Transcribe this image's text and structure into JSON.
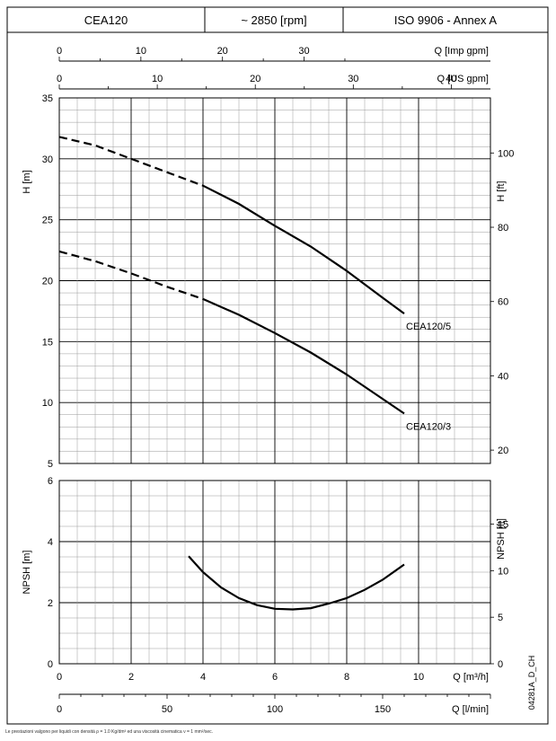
{
  "header": {
    "model": "CEA120",
    "speed": "~ 2850 [rpm]",
    "standard": "ISO 9906 - Annex A"
  },
  "footnote": "Le prestazioni valgono per liquidi con densità ρ = 1.0 Kg/dm³ ed una viscosità cinematica ν = 1 mm²/sec.",
  "drawing_code": "04281A_D_CH",
  "chart_data": [
    {
      "type": "line",
      "id": "head",
      "xlabel": "Q [m³/h]",
      "ylabel": "H [m]",
      "ylabel_right": "H [ft]",
      "xlim": [
        0,
        12
      ],
      "ylim": [
        5,
        35
      ],
      "x_ticks": [
        0,
        2,
        4,
        6,
        8,
        10
      ],
      "y_ticks": [
        5,
        10,
        15,
        20,
        25,
        30,
        35
      ],
      "y_right_ticks": [
        20,
        40,
        60,
        80,
        100
      ],
      "top_axes": [
        {
          "label": "Q [Imp gpm]",
          "ticks": [
            0,
            10,
            20,
            30
          ]
        },
        {
          "label": "Q [US gpm]",
          "ticks": [
            0,
            10,
            20,
            30,
            40
          ]
        }
      ],
      "grid": true,
      "series": [
        {
          "name": "CEA120/5",
          "dashed": {
            "x": [
              0,
              1,
              2,
              3,
              4
            ],
            "y": [
              31.8,
              31.1,
              30.0,
              28.9,
              27.8
            ]
          },
          "solid": {
            "x": [
              4,
              5,
              6,
              7,
              8,
              9,
              9.6
            ],
            "y": [
              27.8,
              26.3,
              24.5,
              22.8,
              20.8,
              18.6,
              17.3
            ]
          }
        },
        {
          "name": "CEA120/3",
          "dashed": {
            "x": [
              0,
              1,
              2,
              3,
              4
            ],
            "y": [
              22.4,
              21.6,
              20.6,
              19.5,
              18.5
            ]
          },
          "solid": {
            "x": [
              4,
              5,
              6,
              7,
              8,
              9,
              9.6
            ],
            "y": [
              18.5,
              17.2,
              15.7,
              14.1,
              12.3,
              10.3,
              9.1
            ]
          }
        }
      ]
    },
    {
      "type": "line",
      "id": "npsh",
      "xlabel": "Q [m³/h]",
      "ylabel": "NPSH [m]",
      "ylabel_right": "NPSH [ft]",
      "xlim": [
        0,
        12
      ],
      "ylim": [
        0,
        6
      ],
      "x_ticks": [
        0,
        2,
        4,
        6,
        8,
        10
      ],
      "y_ticks": [
        0,
        2,
        4,
        6
      ],
      "y_right_ticks": [
        0,
        5,
        10,
        15
      ],
      "bottom_axis": {
        "label": "Q [l/min]",
        "ticks": [
          0,
          50,
          100,
          150
        ]
      },
      "grid": true,
      "series": [
        {
          "name": "",
          "x": [
            3.6,
            4.0,
            4.5,
            5.0,
            5.5,
            6.0,
            6.5,
            7.0,
            7.5,
            8.0,
            8.5,
            9.0,
            9.6
          ],
          "y": [
            3.52,
            3.0,
            2.5,
            2.15,
            1.92,
            1.8,
            1.78,
            1.82,
            1.97,
            2.15,
            2.42,
            2.75,
            3.25
          ]
        }
      ]
    }
  ]
}
